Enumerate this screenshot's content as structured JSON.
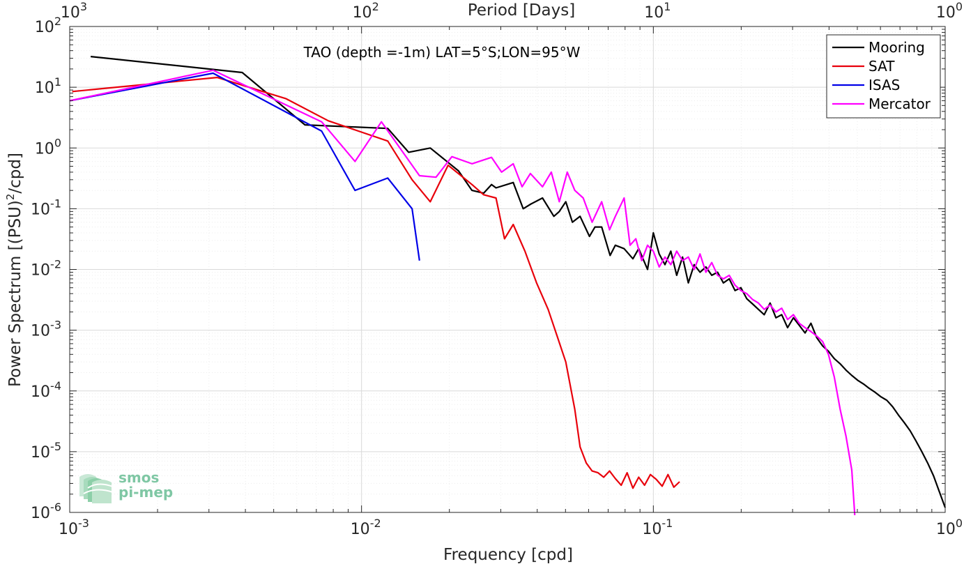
{
  "chart_data": {
    "type": "line",
    "title": "TAO (depth =-1m) LAT=5°S;LON=95°W",
    "xlabel": "Frequency [cpd]",
    "ylabel_main": "Power Spectrum [(PSU)",
    "ylabel_sup": "2",
    "ylabel_tail": "/cpd]",
    "top_xlabel": "Period [Days]",
    "xscale": "log",
    "yscale": "log",
    "xlim": [
      0.001,
      1
    ],
    "ylim": [
      1e-06,
      100
    ],
    "grid": true,
    "minor_grid": true,
    "legend_position": "top-right",
    "x_ticks": [
      {
        "value": 0.001,
        "base": "10",
        "exp": "-3"
      },
      {
        "value": 0.01,
        "base": "10",
        "exp": "-2"
      },
      {
        "value": 0.1,
        "base": "10",
        "exp": "-1"
      },
      {
        "value": 1,
        "base": "10",
        "exp": "0"
      }
    ],
    "top_ticks": [
      {
        "value": 0.001,
        "base": "10",
        "exp": "3"
      },
      {
        "value": 0.01,
        "base": "10",
        "exp": "2"
      },
      {
        "value": 0.1,
        "base": "10",
        "exp": "1"
      },
      {
        "value": 1,
        "base": "10",
        "exp": "0"
      }
    ],
    "y_ticks": [
      {
        "value": 100,
        "base": "10",
        "exp": "2"
      },
      {
        "value": 10,
        "base": "10",
        "exp": "1"
      },
      {
        "value": 1,
        "base": "10",
        "exp": "0"
      },
      {
        "value": 0.1,
        "base": "10",
        "exp": "-1"
      },
      {
        "value": 0.01,
        "base": "10",
        "exp": "-2"
      },
      {
        "value": 0.001,
        "base": "10",
        "exp": "-3"
      },
      {
        "value": 0.0001,
        "base": "10",
        "exp": "-4"
      },
      {
        "value": 1e-05,
        "base": "10",
        "exp": "-5"
      },
      {
        "value": 1e-06,
        "base": "10",
        "exp": "-6"
      }
    ],
    "series": [
      {
        "name": "Mooring",
        "color": "#000000",
        "x": [
          0.00118,
          0.0039,
          0.0064,
          0.0123,
          0.0145,
          0.0172,
          0.0215,
          0.0239,
          0.0262,
          0.0279,
          0.0289,
          0.0331,
          0.0358,
          0.0381,
          0.0417,
          0.0456,
          0.0476,
          0.0501,
          0.0528,
          0.0561,
          0.0604,
          0.0631,
          0.0665,
          0.0711,
          0.0741,
          0.0794,
          0.0851,
          0.0891,
          0.0955,
          0.1,
          0.1047,
          0.1096,
          0.1148,
          0.1202,
          0.1259,
          0.1318,
          0.138,
          0.1445,
          0.1514,
          0.1585,
          0.166,
          0.1738,
          0.182,
          0.1905,
          0.1995,
          0.2089,
          0.2188,
          0.2291,
          0.2399,
          0.2512,
          0.263,
          0.2754,
          0.2884,
          0.302,
          0.3162,
          0.3311,
          0.3467,
          0.3631,
          0.3802,
          0.3981,
          0.4169,
          0.4365,
          0.4571,
          0.4786,
          0.5012,
          0.5248,
          0.5495,
          0.5754,
          0.6026,
          0.631,
          0.6607,
          0.6918,
          0.7244,
          0.7586,
          0.7943,
          0.8318,
          0.871,
          0.912,
          0.955,
          1.0
        ],
        "y": [
          32,
          17.5,
          2.4,
          2.1,
          0.85,
          1.0,
          0.42,
          0.2,
          0.18,
          0.25,
          0.22,
          0.27,
          0.1,
          0.12,
          0.15,
          0.075,
          0.09,
          0.13,
          0.06,
          0.075,
          0.035,
          0.05,
          0.05,
          0.017,
          0.025,
          0.022,
          0.015,
          0.022,
          0.01,
          0.04,
          0.018,
          0.012,
          0.02,
          0.008,
          0.016,
          0.006,
          0.012,
          0.009,
          0.011,
          0.008,
          0.009,
          0.006,
          0.007,
          0.0045,
          0.005,
          0.0033,
          0.0027,
          0.0022,
          0.0018,
          0.0028,
          0.0016,
          0.0018,
          0.0011,
          0.0016,
          0.0012,
          0.0009,
          0.0013,
          0.00075,
          0.00055,
          0.00045,
          0.00034,
          0.00028,
          0.00022,
          0.00018,
          0.00015,
          0.00013,
          0.00011,
          9.5e-05,
          8e-05,
          7e-05,
          5.5e-05,
          4e-05,
          3e-05,
          2.2e-05,
          1.5e-05,
          1e-05,
          6.5e-06,
          4e-06,
          2.2e-06,
          1.2e-06
        ]
      },
      {
        "name": "SAT",
        "color": "#e8000b",
        "x": [
          0.00102,
          0.0032,
          0.0055,
          0.0077,
          0.0123,
          0.0149,
          0.0172,
          0.0198,
          0.0239,
          0.0262,
          0.0289,
          0.0309,
          0.0331,
          0.0363,
          0.0398,
          0.0436,
          0.0468,
          0.0501,
          0.0538,
          0.0561,
          0.0589,
          0.0617,
          0.0646,
          0.0676,
          0.0708,
          0.0741,
          0.0776,
          0.0813,
          0.0851,
          0.0891,
          0.0933,
          0.0977,
          0.1023,
          0.1072,
          0.1122,
          0.1175,
          0.123
        ],
        "y": [
          8.5,
          14.5,
          6.5,
          2.8,
          1.3,
          0.3,
          0.13,
          0.52,
          0.25,
          0.17,
          0.15,
          0.032,
          0.055,
          0.02,
          0.006,
          0.0022,
          0.0008,
          0.0003,
          5e-05,
          1.2e-05,
          6.5e-06,
          4.8e-06,
          4.5e-06,
          3.8e-06,
          4.8e-06,
          3.6e-06,
          2.8e-06,
          4.5e-06,
          2.5e-06,
          3.8e-06,
          2.8e-06,
          4.2e-06,
          3.5e-06,
          2.7e-06,
          4.2e-06,
          2.6e-06,
          3.2e-06
        ]
      },
      {
        "name": "ISAS",
        "color": "#0000e8",
        "x": [
          0.001,
          0.0031,
          0.0073,
          0.0095,
          0.0123,
          0.0149,
          0.0158
        ],
        "y": [
          6,
          17,
          1.9,
          0.2,
          0.32,
          0.1,
          0.014
        ]
      },
      {
        "name": "Mercator",
        "color": "#ff00ff",
        "x": [
          0.001,
          0.0031,
          0.0073,
          0.0095,
          0.0117,
          0.0158,
          0.018,
          0.0204,
          0.0239,
          0.0279,
          0.0302,
          0.0331,
          0.0355,
          0.0379,
          0.0417,
          0.0447,
          0.0476,
          0.0507,
          0.0538,
          0.0575,
          0.0617,
          0.0665,
          0.0708,
          0.0741,
          0.0794,
          0.0832,
          0.0871,
          0.0912,
          0.0955,
          0.1,
          0.1047,
          0.1096,
          0.1148,
          0.1202,
          0.1259,
          0.1318,
          0.138,
          0.1445,
          0.1514,
          0.1585,
          0.166,
          0.1738,
          0.182,
          0.1905,
          0.1995,
          0.2089,
          0.2188,
          0.2291,
          0.2399,
          0.2512,
          0.263,
          0.2754,
          0.2884,
          0.302,
          0.3162,
          0.3311,
          0.3467,
          0.3631,
          0.3802,
          0.3981,
          0.4169,
          0.4365,
          0.4571,
          0.4786,
          0.49
        ],
        "y": [
          6,
          19,
          2.7,
          0.6,
          2.7,
          0.35,
          0.33,
          0.72,
          0.55,
          0.7,
          0.4,
          0.55,
          0.23,
          0.38,
          0.23,
          0.4,
          0.13,
          0.4,
          0.2,
          0.15,
          0.06,
          0.13,
          0.045,
          0.075,
          0.15,
          0.025,
          0.032,
          0.014,
          0.025,
          0.02,
          0.011,
          0.016,
          0.012,
          0.02,
          0.014,
          0.016,
          0.01,
          0.018,
          0.009,
          0.013,
          0.008,
          0.007,
          0.008,
          0.0055,
          0.0045,
          0.004,
          0.0032,
          0.0028,
          0.0022,
          0.0026,
          0.002,
          0.0023,
          0.0015,
          0.0018,
          0.0013,
          0.0011,
          0.00095,
          0.0008,
          0.00065,
          0.0004,
          0.00017,
          5e-05,
          1.8e-05,
          5e-06,
          9e-07
        ]
      }
    ]
  },
  "logo": {
    "line1": "smos",
    "line2": "pi-mep"
  }
}
